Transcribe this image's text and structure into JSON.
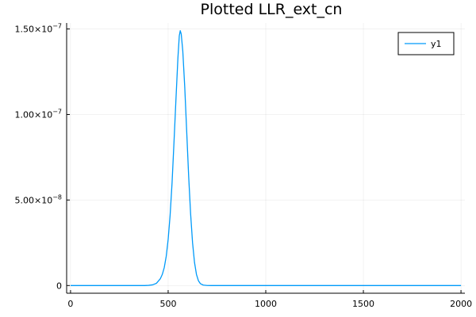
{
  "chart_data": {
    "type": "line",
    "title": "Plotted LLR_ext_cn",
    "xlabel": "",
    "ylabel": "",
    "xlim": [
      -20,
      2020
    ],
    "ylim": [
      -4.5e-09,
      1.535e-07
    ],
    "grid": true,
    "legend_position": "top-right",
    "x_ticks": [
      {
        "value": 0,
        "label": "0"
      },
      {
        "value": 500,
        "label": "500"
      },
      {
        "value": 1000,
        "label": "1000"
      },
      {
        "value": 1500,
        "label": "1500"
      },
      {
        "value": 2000,
        "label": "2000"
      }
    ],
    "y_ticks": [
      {
        "value": 0,
        "mant": "0",
        "exp": ""
      },
      {
        "value": 5e-08,
        "mant": "5.00×10",
        "exp": "−8"
      },
      {
        "value": 1e-07,
        "mant": "1.00×10",
        "exp": "−7"
      },
      {
        "value": 1.5e-07,
        "mant": "1.50×10",
        "exp": "−7"
      }
    ],
    "series": [
      {
        "name": "y1",
        "color": "#009af9",
        "points": [
          [
            0,
            0
          ],
          [
            100,
            0
          ],
          [
            200,
            0
          ],
          [
            300,
            0
          ],
          [
            380,
            0
          ],
          [
            400,
            1e-10
          ],
          [
            420,
            4e-10
          ],
          [
            440,
            1.3e-09
          ],
          [
            460,
            4e-09
          ],
          [
            470,
            6.5e-09
          ],
          [
            480,
            1.05e-08
          ],
          [
            490,
            1.7e-08
          ],
          [
            500,
            2.7e-08
          ],
          [
            510,
            4.1e-08
          ],
          [
            520,
            6e-08
          ],
          [
            530,
            8.4e-08
          ],
          [
            540,
            1.09e-07
          ],
          [
            550,
            1.33e-07
          ],
          [
            557,
            1.46e-07
          ],
          [
            562,
            1.49e-07
          ],
          [
            567,
            1.47e-07
          ],
          [
            575,
            1.37e-07
          ],
          [
            585,
            1.16e-07
          ],
          [
            595,
            9e-08
          ],
          [
            605,
            6.4e-08
          ],
          [
            615,
            4.2e-08
          ],
          [
            625,
            2.5e-08
          ],
          [
            635,
            1.35e-08
          ],
          [
            645,
            6.5e-09
          ],
          [
            655,
            2.8e-09
          ],
          [
            665,
            1.1e-09
          ],
          [
            680,
            2.5e-10
          ],
          [
            700,
            3e-11
          ],
          [
            720,
            0
          ],
          [
            800,
            0
          ],
          [
            1000,
            0
          ],
          [
            1200,
            0
          ],
          [
            1500,
            0
          ],
          [
            1800,
            0
          ],
          [
            2000,
            0
          ]
        ]
      }
    ]
  }
}
